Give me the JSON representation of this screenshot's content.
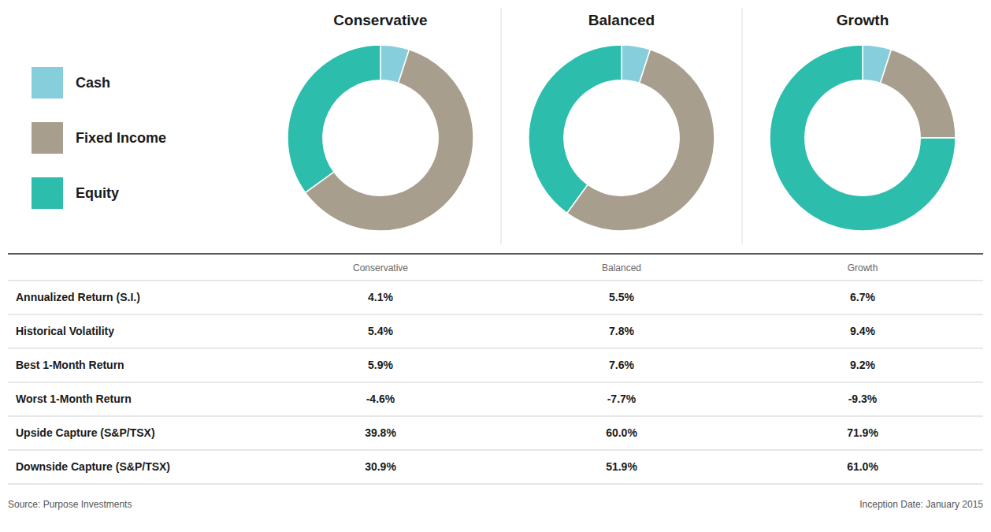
{
  "chart_data": [
    {
      "type": "pie",
      "categories": [
        "Cash",
        "Fixed Income",
        "Equity"
      ],
      "colors": [
        "#87CEDC",
        "#A89E8E",
        "#2DBDAD"
      ],
      "legend": "left",
      "series": [
        {
          "name": "Conservative",
          "values": [
            5,
            60,
            35
          ]
        },
        {
          "name": "Balanced",
          "values": [
            5,
            55,
            40
          ]
        },
        {
          "name": "Growth",
          "values": [
            5,
            20,
            75
          ]
        }
      ]
    },
    {
      "type": "table",
      "categories": [
        "Annualized Return (S.I.)",
        "Historical Volatility",
        "Best 1-Month Return",
        "Worst 1-Month Return",
        "Upside Capture (S&P/TSX)",
        "Downside Capture (S&P/TSX)"
      ],
      "series": [
        {
          "name": "Conservative",
          "values": [
            4.1,
            5.4,
            5.9,
            -4.6,
            39.8,
            30.9
          ],
          "value_labels": [
            "4.1%",
            "5.4%",
            "5.9%",
            "-4.6%",
            "39.8%",
            "30.9%"
          ]
        },
        {
          "name": "Balanced",
          "values": [
            5.5,
            7.8,
            7.6,
            -7.7,
            60.0,
            51.9
          ],
          "value_labels": [
            "5.5%",
            "7.8%",
            "7.6%",
            "-7.7%",
            "60.0%",
            "51.9%"
          ]
        },
        {
          "name": "Growth",
          "values": [
            6.7,
            9.4,
            9.2,
            -9.3,
            71.9,
            61.0
          ],
          "value_labels": [
            "6.7%",
            "9.4%",
            "9.2%",
            "-9.3%",
            "71.9%",
            "61.0%"
          ]
        }
      ],
      "annotations": [
        "Source: Purpose Investments",
        "Inception Date: January 2015"
      ]
    }
  ]
}
